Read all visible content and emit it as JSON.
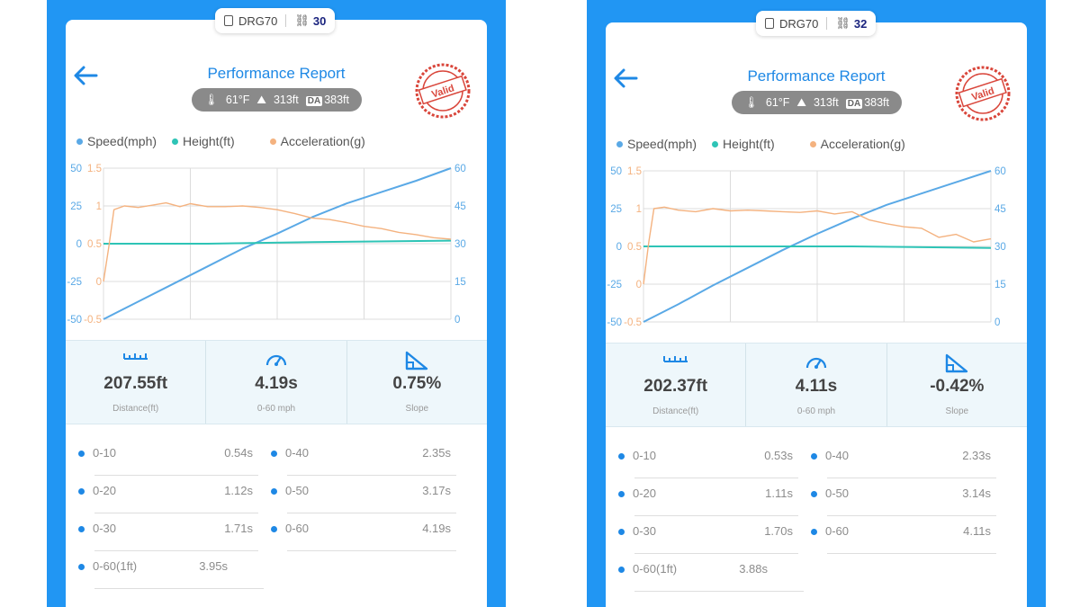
{
  "screens": [
    {
      "device": {
        "name": "DRG70",
        "run_count": "30"
      },
      "title": "Performance Report",
      "conditions": {
        "temp": "61°F",
        "altitude": "313ft",
        "da_label": "DA",
        "density_altitude": "383ft"
      },
      "stamp_text": "Valid",
      "legend": [
        "Speed(mph)",
        "Height(ft)",
        "Acceleration(g)"
      ],
      "colors": {
        "speed": "#5aa9e6",
        "height": "#2ec4b6",
        "accel": "#f4b27f"
      },
      "chart_data": {
        "type": "line",
        "axes": {
          "height_left": {
            "ticks": [
              "50",
              "25",
              "0",
              "-25",
              "-50"
            ],
            "range": [
              -50,
              50
            ]
          },
          "accel_left": {
            "ticks": [
              "1.5",
              "1",
              "0.5",
              "0",
              "-0.5"
            ],
            "range": [
              -0.5,
              1.5
            ]
          },
          "speed_right": {
            "ticks": [
              "60",
              "45",
              "30",
              "15",
              "0"
            ],
            "range": [
              0,
              60
            ]
          }
        },
        "grid": true,
        "x_domain": [
          0,
          1
        ],
        "series": [
          {
            "name": "Speed(mph)",
            "axis": "speed_right",
            "points": [
              [
                0,
                0
              ],
              [
                0.1,
                7
              ],
              [
                0.2,
                14
              ],
              [
                0.3,
                21
              ],
              [
                0.4,
                28
              ],
              [
                0.5,
                34
              ],
              [
                0.6,
                40.5
              ],
              [
                0.7,
                46
              ],
              [
                0.8,
                50.5
              ],
              [
                0.9,
                55
              ],
              [
                1.0,
                60
              ]
            ]
          },
          {
            "name": "Height(ft)",
            "axis": "height_left",
            "points": [
              [
                0,
                0
              ],
              [
                0.3,
                0
              ],
              [
                0.6,
                1
              ],
              [
                1.0,
                2
              ]
            ]
          },
          {
            "name": "Acceleration(g)",
            "axis": "accel_left",
            "points": [
              [
                0,
                0
              ],
              [
                0.015,
                0.45
              ],
              [
                0.03,
                0.95
              ],
              [
                0.06,
                1.0
              ],
              [
                0.1,
                0.98
              ],
              [
                0.14,
                1.01
              ],
              [
                0.18,
                1.04
              ],
              [
                0.22,
                0.99
              ],
              [
                0.25,
                1.03
              ],
              [
                0.3,
                0.99
              ],
              [
                0.35,
                0.99
              ],
              [
                0.4,
                1.0
              ],
              [
                0.45,
                0.98
              ],
              [
                0.5,
                0.95
              ],
              [
                0.55,
                0.9
              ],
              [
                0.6,
                0.84
              ],
              [
                0.65,
                0.82
              ],
              [
                0.7,
                0.78
              ],
              [
                0.75,
                0.73
              ],
              [
                0.8,
                0.7
              ],
              [
                0.85,
                0.65
              ],
              [
                0.9,
                0.62
              ],
              [
                0.95,
                0.58
              ],
              [
                1.0,
                0.56
              ]
            ]
          }
        ]
      },
      "metrics": [
        {
          "icon": "ruler-icon",
          "value": "207.55ft",
          "label": "Distance(ft)"
        },
        {
          "icon": "speedometer-icon",
          "value": "4.19s",
          "label": "0-60 mph"
        },
        {
          "icon": "slope-icon",
          "value": "0.75%",
          "label": "Slope"
        }
      ],
      "splits": [
        {
          "label": "0-10",
          "value": "0.54s"
        },
        {
          "label": "0-40",
          "value": "2.35s"
        },
        {
          "label": "0-20",
          "value": "1.12s"
        },
        {
          "label": "0-50",
          "value": "3.17s"
        },
        {
          "label": "0-30",
          "value": "1.71s"
        },
        {
          "label": "0-60",
          "value": "4.19s"
        },
        {
          "label": "0-60(1ft)",
          "value": "3.95s"
        }
      ]
    },
    {
      "device": {
        "name": "DRG70",
        "run_count": "32"
      },
      "title": "Performance Report",
      "conditions": {
        "temp": "61°F",
        "altitude": "313ft",
        "da_label": "DA",
        "density_altitude": "383ft"
      },
      "stamp_text": "Valid",
      "legend": [
        "Speed(mph)",
        "Height(ft)",
        "Acceleration(g)"
      ],
      "colors": {
        "speed": "#5aa9e6",
        "height": "#2ec4b6",
        "accel": "#f4b27f"
      },
      "chart_data": {
        "type": "line",
        "axes": {
          "height_left": {
            "ticks": [
              "50",
              "25",
              "0",
              "-25",
              "-50"
            ],
            "range": [
              -50,
              50
            ]
          },
          "accel_left": {
            "ticks": [
              "1.5",
              "1",
              "0.5",
              "0",
              "-0.5"
            ],
            "range": [
              -0.5,
              1.5
            ]
          },
          "speed_right": {
            "ticks": [
              "60",
              "45",
              "30",
              "15",
              "0"
            ],
            "range": [
              0,
              60
            ]
          }
        },
        "grid": true,
        "x_domain": [
          0,
          1
        ],
        "series": [
          {
            "name": "Speed(mph)",
            "axis": "speed_right",
            "points": [
              [
                0,
                0
              ],
              [
                0.1,
                7
              ],
              [
                0.2,
                14.5
              ],
              [
                0.3,
                21.5
              ],
              [
                0.4,
                28.5
              ],
              [
                0.5,
                35
              ],
              [
                0.6,
                41
              ],
              [
                0.7,
                46.5
              ],
              [
                0.8,
                51
              ],
              [
                0.9,
                55.5
              ],
              [
                1.0,
                60
              ]
            ]
          },
          {
            "name": "Height(ft)",
            "axis": "height_left",
            "points": [
              [
                0,
                0
              ],
              [
                0.3,
                0
              ],
              [
                0.6,
                0
              ],
              [
                1.0,
                -1
              ]
            ]
          },
          {
            "name": "Acceleration(g)",
            "axis": "accel_left",
            "points": [
              [
                0,
                0
              ],
              [
                0.015,
                0.55
              ],
              [
                0.03,
                1.0
              ],
              [
                0.06,
                1.02
              ],
              [
                0.1,
                0.98
              ],
              [
                0.15,
                0.96
              ],
              [
                0.2,
                1.0
              ],
              [
                0.25,
                0.97
              ],
              [
                0.3,
                0.98
              ],
              [
                0.35,
                0.97
              ],
              [
                0.4,
                0.96
              ],
              [
                0.45,
                0.95
              ],
              [
                0.5,
                0.97
              ],
              [
                0.55,
                0.93
              ],
              [
                0.6,
                0.96
              ],
              [
                0.65,
                0.85
              ],
              [
                0.7,
                0.8
              ],
              [
                0.75,
                0.76
              ],
              [
                0.8,
                0.74
              ],
              [
                0.85,
                0.62
              ],
              [
                0.9,
                0.66
              ],
              [
                0.95,
                0.56
              ],
              [
                1.0,
                0.6
              ]
            ]
          }
        ]
      },
      "metrics": [
        {
          "icon": "ruler-icon",
          "value": "202.37ft",
          "label": "Distance(ft)"
        },
        {
          "icon": "speedometer-icon",
          "value": "4.11s",
          "label": "0-60 mph"
        },
        {
          "icon": "slope-icon",
          "value": "-0.42%",
          "label": "Slope"
        }
      ],
      "splits": [
        {
          "label": "0-10",
          "value": "0.53s"
        },
        {
          "label": "0-40",
          "value": "2.33s"
        },
        {
          "label": "0-20",
          "value": "1.11s"
        },
        {
          "label": "0-50",
          "value": "3.14s"
        },
        {
          "label": "0-30",
          "value": "1.70s"
        },
        {
          "label": "0-60",
          "value": "4.11s"
        },
        {
          "label": "0-60(1ft)",
          "value": "3.88s"
        }
      ]
    }
  ]
}
